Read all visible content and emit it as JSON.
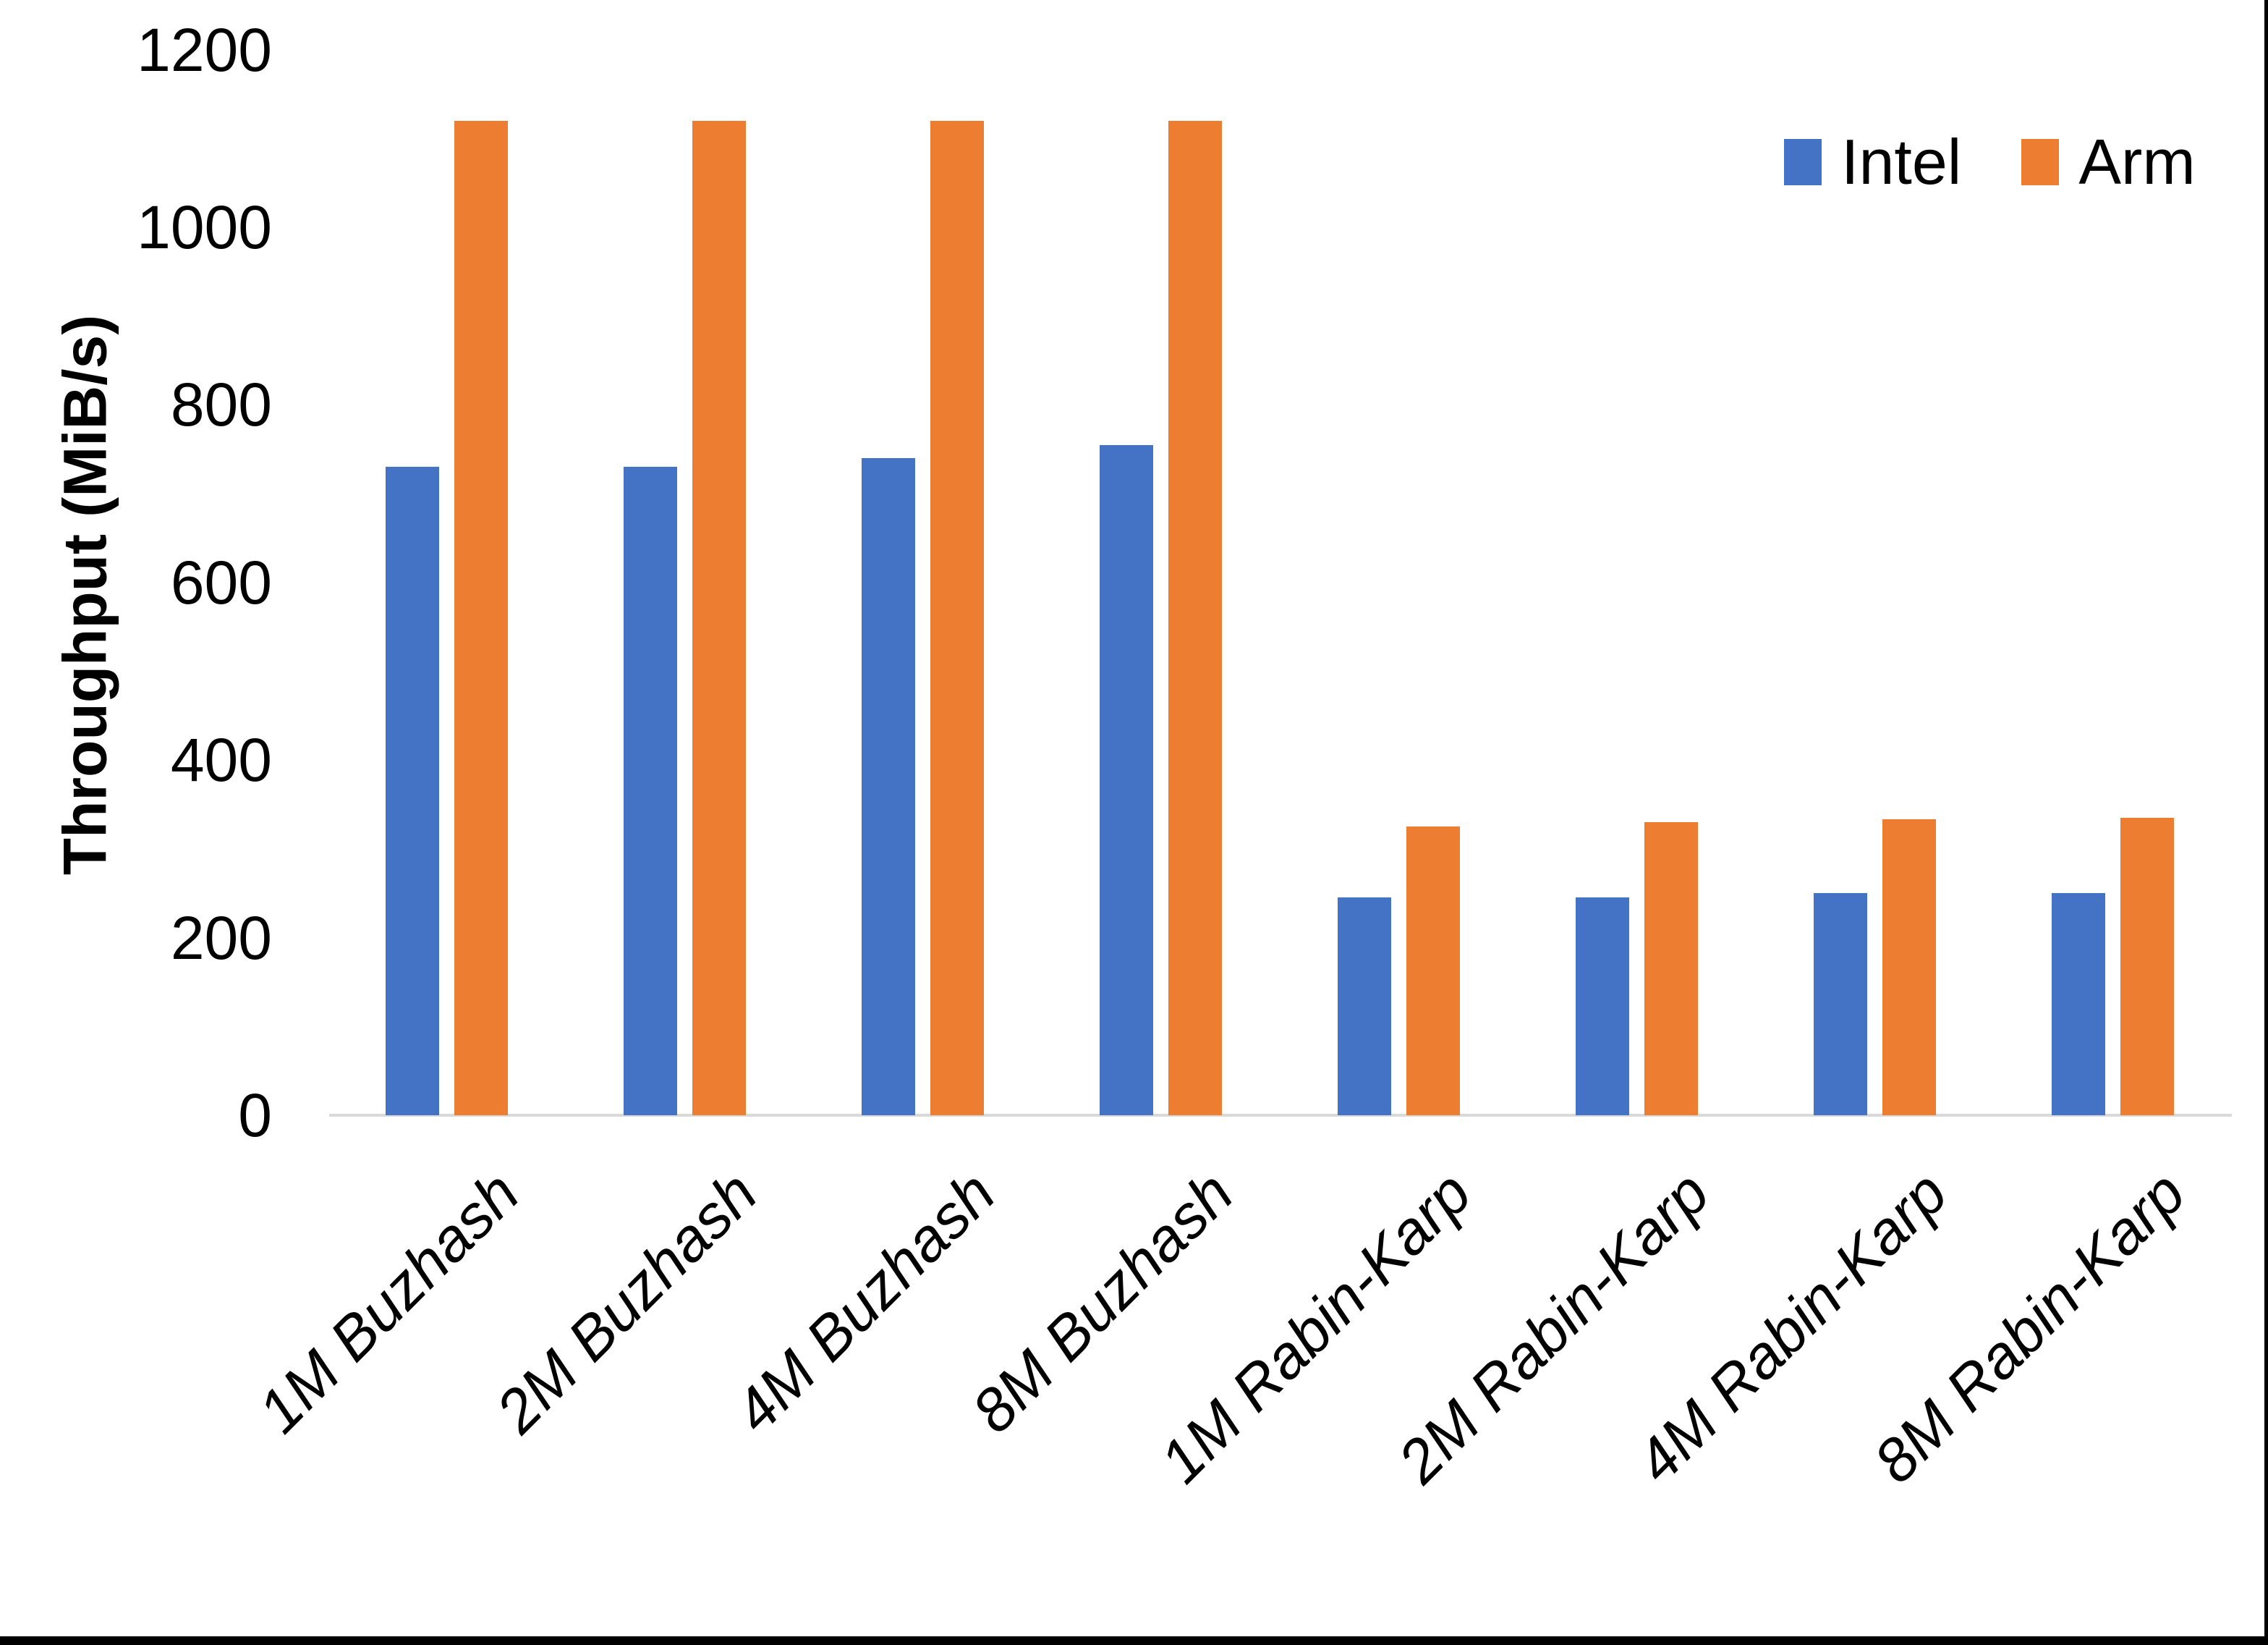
{
  "chart_data": {
    "type": "bar",
    "title": "",
    "ylabel": "Throughput (MiB/s)",
    "xlabel": "",
    "categories": [
      "1M Buzhash",
      "2M Buzhash",
      "4M Buzhash",
      "8M Buzhash",
      "1M Rabin-Karp",
      "2M Rabin-Karp",
      "4M Rabin-Karp",
      "8M Rabin-Karp"
    ],
    "series": [
      {
        "name": "Intel",
        "color": "#4472C4",
        "values": [
          730,
          730,
          740,
          755,
          245,
          245,
          250,
          250
        ]
      },
      {
        "name": "Arm",
        "color": "#ED7D31",
        "values": [
          1120,
          1120,
          1120,
          1120,
          325,
          330,
          333,
          335
        ]
      }
    ],
    "ylim": [
      0,
      1200
    ],
    "yticks": [
      0,
      200,
      400,
      600,
      800,
      1000,
      1200
    ],
    "grid": false,
    "legend_position": "top-right"
  },
  "colors": {
    "axis_line": "#D9D9D9",
    "text": "#000000",
    "background": "#FFFFFF",
    "frame": "#000000"
  }
}
